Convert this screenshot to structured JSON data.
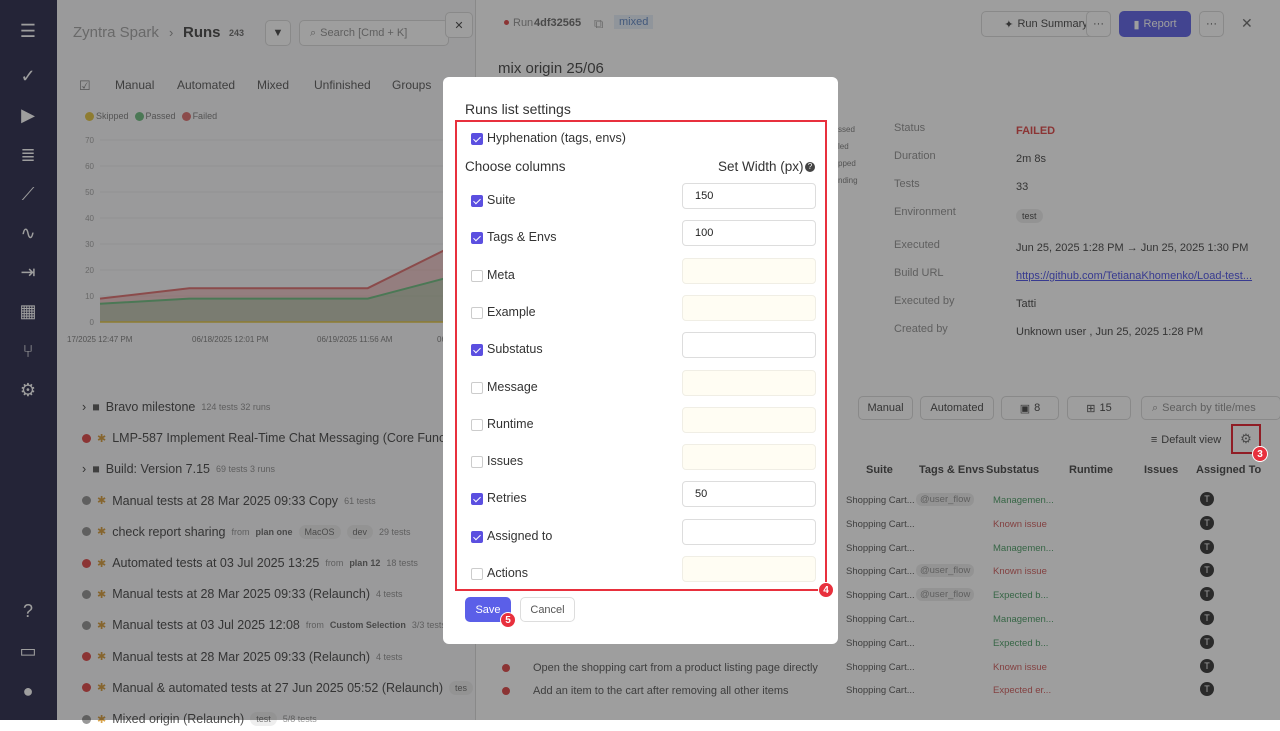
{
  "sidebar": {
    "icons": [
      "menu-icon",
      "check-icon",
      "play-icon",
      "list-check-icon",
      "steps-icon",
      "pulse-icon",
      "import-icon",
      "analytics-icon",
      "branch-icon",
      "gear-icon",
      "help-icon",
      "folder-icon",
      "avatar-icon"
    ]
  },
  "header": {
    "project": "Zyntra Spark",
    "separator": "›",
    "title": "Runs",
    "count": "243",
    "search_placeholder": "Search [Cmd + K]"
  },
  "tabs": [
    "Manual",
    "Automated",
    "Mixed",
    "Unfinished",
    "Groups"
  ],
  "chart_data": {
    "type": "area",
    "legend": [
      "Skipped",
      "Passed",
      "Failed"
    ],
    "colors": {
      "Skipped": "#e6c94f",
      "Passed": "#79c28a",
      "Failed": "#e07a7a"
    },
    "yticks": [
      "0",
      "10",
      "20",
      "30",
      "40",
      "50",
      "60",
      "70"
    ],
    "ylim": [
      0,
      70
    ],
    "xticks": [
      "17/2025 12:47 PM",
      "06/18/2025 12:01 PM",
      "06/19/2025 11:56 AM",
      "06"
    ],
    "series": [
      {
        "name": "Skipped",
        "values": [
          0,
          0,
          0,
          0,
          0
        ]
      },
      {
        "name": "Passed",
        "values": [
          7,
          9,
          9,
          9,
          18
        ]
      },
      {
        "name": "Failed",
        "values": [
          9,
          13,
          13,
          13,
          30
        ]
      }
    ]
  },
  "runs": [
    {
      "type": "group",
      "title": "Bravo milestone",
      "meta": "124 tests  32 runs"
    },
    {
      "status": "failed",
      "title": "LMP-587 Implement Real-Time Chat Messaging (Core Functio",
      "meta": ""
    },
    {
      "type": "group",
      "title": "Build: Version 7.15",
      "meta": "69 tests  3 runs"
    },
    {
      "status": "pending",
      "title": "Manual tests at 28 Mar 2025 09:33 Copy",
      "meta": "61 tests"
    },
    {
      "status": "pending",
      "title": "check report sharing",
      "from": "from",
      "plan": "plan one",
      "chips": [
        "MacOS",
        "dev"
      ],
      "meta": "29 tests"
    },
    {
      "status": "failed",
      "title": "Automated tests at 03 Jul 2025 13:25",
      "from": "from",
      "plan": "plan 12",
      "meta": "18 tests"
    },
    {
      "status": "pending",
      "title": "Manual tests at 28 Mar 2025 09:33 (Relaunch)",
      "meta": "4 tests"
    },
    {
      "status": "pending",
      "title": "Manual tests at 03 Jul 2025 12:08",
      "from": "from",
      "plan": "Custom Selection",
      "meta": "3/3 tests"
    },
    {
      "status": "failed",
      "title": "Manual tests at 28 Mar 2025 09:33 (Relaunch)",
      "meta": "4 tests"
    },
    {
      "status": "failed",
      "title": "Manual & automated tests at 27 Jun 2025 05:52 (Relaunch)",
      "chips": [
        "tes"
      ],
      "meta": ""
    },
    {
      "status": "pending",
      "title": "Mixed origin (Relaunch)",
      "chips": [
        "test"
      ],
      "meta": "5/8 tests"
    }
  ],
  "run": {
    "label": "Run",
    "id": "4df32565",
    "type": "mixed",
    "title": "mix origin 25/06",
    "summary_btn": "Run Summary",
    "report_btn": "Report",
    "more": "···",
    "stats": [
      "ssed",
      "led",
      "pped",
      "nding"
    ],
    "details": [
      {
        "k": "Status",
        "v": "FAILED"
      },
      {
        "k": "Duration",
        "v": "2m 8s"
      },
      {
        "k": "Tests",
        "v": "33"
      },
      {
        "k": "Environment",
        "v": "test"
      },
      {
        "k": "Executed",
        "v": "Jun 25, 2025 1:28 PM → Jun 25, 2025 1:30 PM"
      },
      {
        "k": "Build URL",
        "v": "https://github.com/TetianaKhomenko/Load-test..."
      },
      {
        "k": "Executed by",
        "v": "Tatti"
      },
      {
        "k": "Created by",
        "v": "Unknown user , Jun 25, 2025 1:28 PM"
      }
    ]
  },
  "filters": {
    "manual": "Manual",
    "automated": "Automated",
    "notes_count": "8",
    "add_count": "15",
    "search_placeholder": "Search by title/mes",
    "view": "Default view"
  },
  "table": {
    "headers": [
      "Suite",
      "Tags & Envs",
      "Substatus",
      "Runtime",
      "Issues",
      "Assigned To"
    ],
    "rows": [
      {
        "title": "",
        "suite": "Shopping Cart...",
        "tag": "@user_flow",
        "sub": "Managemen...",
        "subc": "green"
      },
      {
        "title": "",
        "suite": "Shopping Cart...",
        "tag": "",
        "sub": "Known issue",
        "subc": "red"
      },
      {
        "title": "",
        "suite": "Shopping Cart...",
        "tag": "",
        "sub": "Managemen...",
        "subc": "green"
      },
      {
        "title": "",
        "suite": "Shopping Cart...",
        "tag": "@user_flow",
        "sub": "Known issue",
        "subc": "red"
      },
      {
        "title": "",
        "suite": "Shopping Cart...",
        "tag": "@user_flow",
        "sub": "Expected b...",
        "subc": "green"
      },
      {
        "title": "",
        "suite": "Shopping Cart...",
        "tag": "",
        "sub": "Managemen...",
        "subc": "green"
      },
      {
        "title": "",
        "suite": "Shopping Cart...",
        "tag": "",
        "sub": "Expected b...",
        "subc": "green"
      },
      {
        "title": "Open the shopping cart from a product listing page directly",
        "suite": "Shopping Cart...",
        "tag": "",
        "sub": "Known issue",
        "subc": "red"
      },
      {
        "title": "Add an item to the cart after removing all other items",
        "suite": "Shopping Cart...",
        "tag": "",
        "sub": "Expected er...",
        "subc": "red"
      }
    ]
  },
  "modal": {
    "title": "Runs list settings",
    "hyphenation": "Hyphenation (tags, envs)",
    "hyphenation_checked": true,
    "choose": "Choose columns",
    "set_width": "Set Width (px)",
    "columns": [
      {
        "label": "Suite",
        "checked": true,
        "width": "150"
      },
      {
        "label": "Tags & Envs",
        "checked": true,
        "width": "100"
      },
      {
        "label": "Meta",
        "checked": false,
        "width": ""
      },
      {
        "label": "Example",
        "checked": false,
        "width": ""
      },
      {
        "label": "Substatus",
        "checked": true,
        "width": ""
      },
      {
        "label": "Message",
        "checked": false,
        "width": ""
      },
      {
        "label": "Runtime",
        "checked": false,
        "width": ""
      },
      {
        "label": "Issues",
        "checked": false,
        "width": ""
      },
      {
        "label": "Retries",
        "checked": true,
        "width": "50"
      },
      {
        "label": "Assigned to",
        "checked": true,
        "width": ""
      },
      {
        "label": "Actions",
        "checked": false,
        "width": ""
      }
    ],
    "save": "Save",
    "cancel": "Cancel"
  },
  "annotations": [
    "3",
    "4",
    "5"
  ],
  "colors": {
    "accent": "#5b4fe0",
    "failed": "#e05555",
    "highlight": "#e8303d"
  }
}
